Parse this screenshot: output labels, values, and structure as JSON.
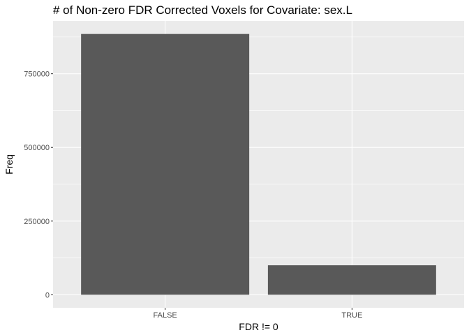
{
  "chart_data": {
    "type": "bar",
    "title": "# of Non-zero FDR Corrected Voxels for Covariate: sex.L",
    "xlabel": "FDR != 0",
    "ylabel": "Freq",
    "categories": [
      "FALSE",
      "TRUE"
    ],
    "values": [
      885000,
      100000
    ],
    "ylim": [
      -44250,
      929250
    ],
    "yticks": [
      0,
      250000,
      500000,
      750000
    ],
    "ytick_labels": [
      "0",
      "250000",
      "500000",
      "750000"
    ],
    "grid": true,
    "colors": {
      "bar": "#595959",
      "panel": "#ebebeb",
      "grid_major": "#ffffff",
      "tick_text": "#4d4d4d"
    }
  }
}
